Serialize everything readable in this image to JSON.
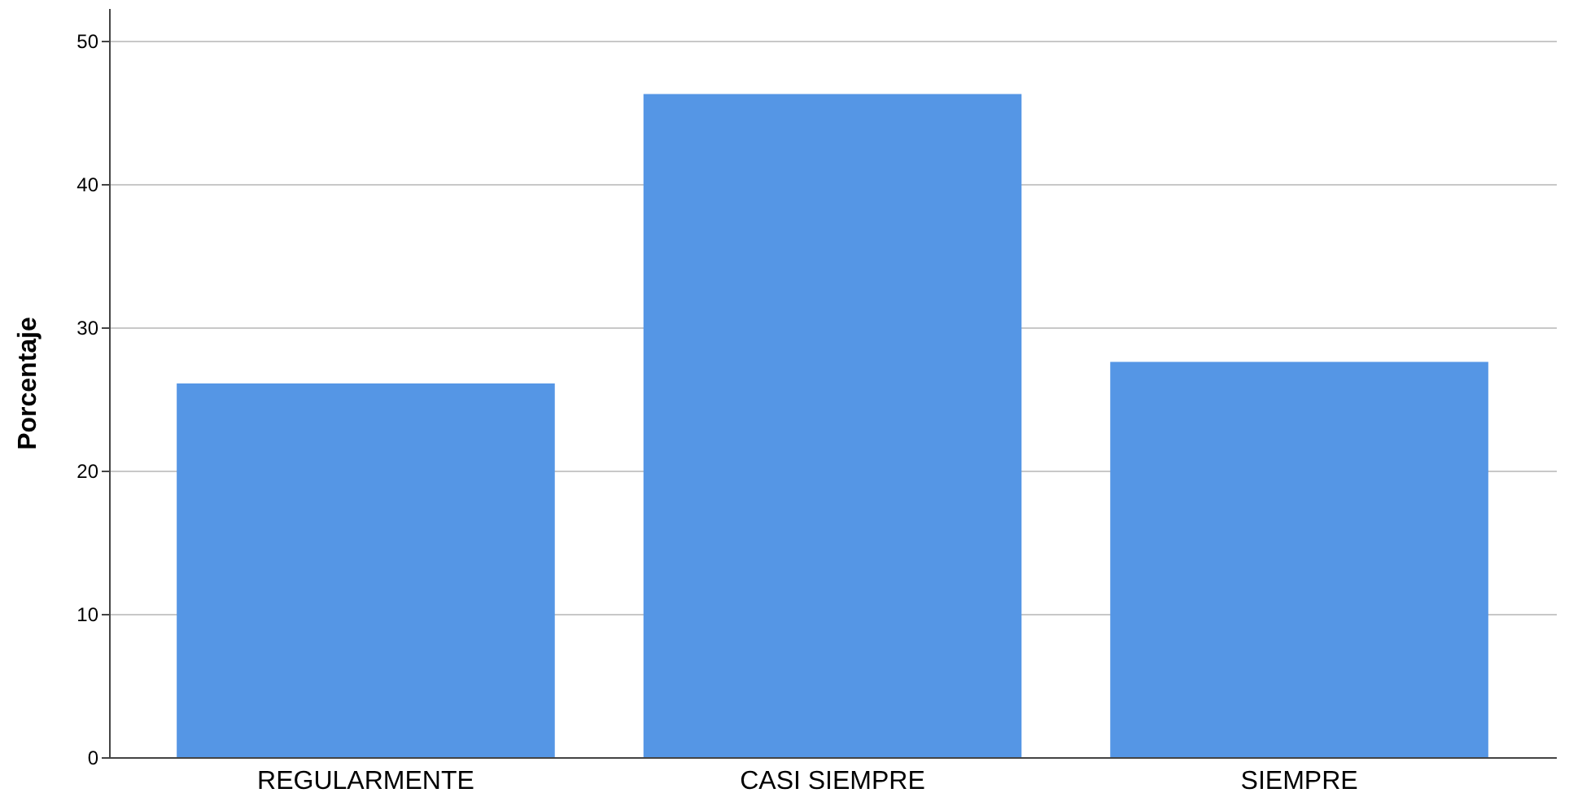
{
  "chart_data": {
    "type": "bar",
    "ylabel": "Porcentaje",
    "categories": [
      "REGULARMENTE",
      "CASI SIEMPRE",
      "SIEMPRE"
    ],
    "values": [
      26.1,
      46.3,
      27.6
    ],
    "color": "#5596e5",
    "ylim": [
      0,
      52.3
    ],
    "yticks": [
      0,
      10,
      20,
      30,
      40,
      50
    ],
    "grid": "y"
  }
}
